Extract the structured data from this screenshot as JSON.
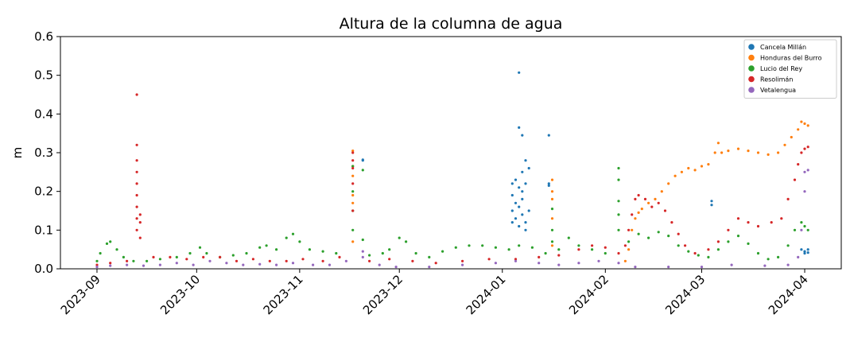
{
  "chart_data": {
    "type": "scatter",
    "title": "Altura de la columna de agua",
    "xlabel": "",
    "ylabel": "m",
    "x_axis_type": "date",
    "xlim": [
      "2023-08-21",
      "2024-04-12"
    ],
    "ylim": [
      0,
      0.6
    ],
    "x_ticks": [
      "2023-09",
      "2023-10",
      "2023-11",
      "2023-12",
      "2024-01",
      "2024-02",
      "2024-03",
      "2024-04"
    ],
    "y_ticks": [
      0.0,
      0.1,
      0.2,
      0.3,
      0.4,
      0.5,
      0.6
    ],
    "y_tick_labels": [
      "0.0",
      "0.1",
      "0.2",
      "0.3",
      "0.4",
      "0.5",
      "0.6"
    ],
    "grid": false,
    "legend_position": "top-right",
    "series": [
      {
        "name": "Cancela Millán",
        "color": "#1f77b4",
        "marker_size": "small",
        "points": [
          [
            "2023-11-20",
            0.28
          ],
          [
            "2023-11-20",
            0.282
          ],
          [
            "2024-01-04",
            0.22
          ],
          [
            "2024-01-04",
            0.19
          ],
          [
            "2024-01-04",
            0.15
          ],
          [
            "2024-01-04",
            0.12
          ],
          [
            "2024-01-05",
            0.23
          ],
          [
            "2024-01-05",
            0.17
          ],
          [
            "2024-01-05",
            0.13
          ],
          [
            "2024-01-06",
            0.507
          ],
          [
            "2024-01-06",
            0.365
          ],
          [
            "2024-01-06",
            0.21
          ],
          [
            "2024-01-06",
            0.16
          ],
          [
            "2024-01-06",
            0.11
          ],
          [
            "2024-01-07",
            0.345
          ],
          [
            "2024-01-07",
            0.25
          ],
          [
            "2024-01-07",
            0.2
          ],
          [
            "2024-01-07",
            0.18
          ],
          [
            "2024-01-07",
            0.14
          ],
          [
            "2024-01-08",
            0.28
          ],
          [
            "2024-01-08",
            0.22
          ],
          [
            "2024-01-08",
            0.12
          ],
          [
            "2024-01-08",
            0.1
          ],
          [
            "2024-01-09",
            0.26
          ],
          [
            "2024-01-09",
            0.15
          ],
          [
            "2024-01-15",
            0.345
          ],
          [
            "2024-01-15",
            0.22
          ],
          [
            "2024-01-15",
            0.215
          ],
          [
            "2024-03-04",
            0.175
          ],
          [
            "2024-03-04",
            0.165
          ],
          [
            "2024-03-31",
            0.05
          ],
          [
            "2024-04-01",
            0.045
          ],
          [
            "2024-04-01",
            0.04
          ],
          [
            "2024-04-02",
            0.05
          ],
          [
            "2024-04-02",
            0.042
          ]
        ]
      },
      {
        "name": "Honduras del Burro",
        "color": "#ff7f0e",
        "marker_size": "small",
        "points": [
          [
            "2023-11-17",
            0.305
          ],
          [
            "2023-11-17",
            0.265
          ],
          [
            "2023-11-17",
            0.24
          ],
          [
            "2023-11-17",
            0.19
          ],
          [
            "2023-11-17",
            0.17
          ],
          [
            "2023-11-17",
            0.07
          ],
          [
            "2024-01-16",
            0.23
          ],
          [
            "2024-01-16",
            0.2
          ],
          [
            "2024-01-16",
            0.18
          ],
          [
            "2024-01-16",
            0.13
          ],
          [
            "2024-01-16",
            0.06
          ],
          [
            "2024-02-07",
            0.02
          ],
          [
            "2024-02-08",
            0.05
          ],
          [
            "2024-02-09",
            0.1
          ],
          [
            "2024-02-10",
            0.13
          ],
          [
            "2024-02-11",
            0.145
          ],
          [
            "2024-02-12",
            0.155
          ],
          [
            "2024-02-14",
            0.17
          ],
          [
            "2024-02-16",
            0.18
          ],
          [
            "2024-02-18",
            0.2
          ],
          [
            "2024-02-20",
            0.22
          ],
          [
            "2024-02-22",
            0.24
          ],
          [
            "2024-02-24",
            0.25
          ],
          [
            "2024-02-26",
            0.26
          ],
          [
            "2024-02-28",
            0.255
          ],
          [
            "2024-03-01",
            0.265
          ],
          [
            "2024-03-03",
            0.27
          ],
          [
            "2024-03-05",
            0.3
          ],
          [
            "2024-03-06",
            0.325
          ],
          [
            "2024-03-07",
            0.3
          ],
          [
            "2024-03-09",
            0.305
          ],
          [
            "2024-03-12",
            0.31
          ],
          [
            "2024-03-15",
            0.305
          ],
          [
            "2024-03-18",
            0.3
          ],
          [
            "2024-03-21",
            0.295
          ],
          [
            "2024-03-24",
            0.3
          ],
          [
            "2024-03-26",
            0.32
          ],
          [
            "2024-03-28",
            0.34
          ],
          [
            "2024-03-30",
            0.36
          ],
          [
            "2024-03-31",
            0.38
          ],
          [
            "2024-04-01",
            0.375
          ],
          [
            "2024-04-02",
            0.37
          ]
        ]
      },
      {
        "name": "Lucio del Rey",
        "color": "#2ca02c",
        "marker_size": "small",
        "points": [
          [
            "2023-09-01",
            0.02
          ],
          [
            "2023-09-02",
            0.04
          ],
          [
            "2023-09-04",
            0.065
          ],
          [
            "2023-09-05",
            0.07
          ],
          [
            "2023-09-07",
            0.05
          ],
          [
            "2023-09-09",
            0.03
          ],
          [
            "2023-09-12",
            0.02
          ],
          [
            "2023-09-16",
            0.02
          ],
          [
            "2023-09-20",
            0.025
          ],
          [
            "2023-09-25",
            0.03
          ],
          [
            "2023-09-29",
            0.04
          ],
          [
            "2023-10-02",
            0.055
          ],
          [
            "2023-10-04",
            0.04
          ],
          [
            "2023-10-08",
            0.03
          ],
          [
            "2023-10-12",
            0.035
          ],
          [
            "2023-10-16",
            0.04
          ],
          [
            "2023-10-20",
            0.055
          ],
          [
            "2023-10-22",
            0.06
          ],
          [
            "2023-10-25",
            0.05
          ],
          [
            "2023-10-28",
            0.08
          ],
          [
            "2023-10-30",
            0.09
          ],
          [
            "2023-11-01",
            0.07
          ],
          [
            "2023-11-04",
            0.05
          ],
          [
            "2023-11-08",
            0.045
          ],
          [
            "2023-11-12",
            0.04
          ],
          [
            "2023-11-17",
            0.265
          ],
          [
            "2023-11-17",
            0.2
          ],
          [
            "2023-11-17",
            0.15
          ],
          [
            "2023-11-17",
            0.1
          ],
          [
            "2023-11-20",
            0.255
          ],
          [
            "2023-11-20",
            0.075
          ],
          [
            "2023-11-22",
            0.035
          ],
          [
            "2023-11-26",
            0.04
          ],
          [
            "2023-11-28",
            0.05
          ],
          [
            "2023-12-01",
            0.08
          ],
          [
            "2023-12-03",
            0.07
          ],
          [
            "2023-12-06",
            0.04
          ],
          [
            "2023-12-10",
            0.03
          ],
          [
            "2023-12-14",
            0.045
          ],
          [
            "2023-12-18",
            0.055
          ],
          [
            "2023-12-22",
            0.06
          ],
          [
            "2023-12-26",
            0.06
          ],
          [
            "2023-12-30",
            0.055
          ],
          [
            "2024-01-03",
            0.05
          ],
          [
            "2024-01-06",
            0.06
          ],
          [
            "2024-01-10",
            0.055
          ],
          [
            "2024-01-14",
            0.04
          ],
          [
            "2024-01-16",
            0.155
          ],
          [
            "2024-01-16",
            0.1
          ],
          [
            "2024-01-16",
            0.07
          ],
          [
            "2024-01-18",
            0.05
          ],
          [
            "2024-01-21",
            0.08
          ],
          [
            "2024-01-24",
            0.06
          ],
          [
            "2024-01-28",
            0.05
          ],
          [
            "2024-02-01",
            0.04
          ],
          [
            "2024-02-05",
            0.26
          ],
          [
            "2024-02-05",
            0.23
          ],
          [
            "2024-02-05",
            0.175
          ],
          [
            "2024-02-05",
            0.14
          ],
          [
            "2024-02-05",
            0.1
          ],
          [
            "2024-02-08",
            0.07
          ],
          [
            "2024-02-11",
            0.09
          ],
          [
            "2024-02-14",
            0.08
          ],
          [
            "2024-02-17",
            0.095
          ],
          [
            "2024-02-20",
            0.085
          ],
          [
            "2024-02-23",
            0.06
          ],
          [
            "2024-02-26",
            0.045
          ],
          [
            "2024-02-29",
            0.035
          ],
          [
            "2024-03-03",
            0.03
          ],
          [
            "2024-03-06",
            0.05
          ],
          [
            "2024-03-09",
            0.07
          ],
          [
            "2024-03-12",
            0.085
          ],
          [
            "2024-03-15",
            0.065
          ],
          [
            "2024-03-18",
            0.04
          ],
          [
            "2024-03-21",
            0.025
          ],
          [
            "2024-03-24",
            0.03
          ],
          [
            "2024-03-27",
            0.06
          ],
          [
            "2024-03-29",
            0.1
          ],
          [
            "2024-03-31",
            0.12
          ],
          [
            "2024-04-01",
            0.11
          ],
          [
            "2024-04-02",
            0.1
          ]
        ]
      },
      {
        "name": "Resolimán",
        "color": "#d62728",
        "marker_size": "small",
        "points": [
          [
            "2023-09-01",
            0.01
          ],
          [
            "2023-09-05",
            0.015
          ],
          [
            "2023-09-10",
            0.02
          ],
          [
            "2023-09-13",
            0.45
          ],
          [
            "2023-09-13",
            0.32
          ],
          [
            "2023-09-13",
            0.28
          ],
          [
            "2023-09-13",
            0.25
          ],
          [
            "2023-09-13",
            0.22
          ],
          [
            "2023-09-13",
            0.19
          ],
          [
            "2023-09-13",
            0.16
          ],
          [
            "2023-09-13",
            0.13
          ],
          [
            "2023-09-13",
            0.1
          ],
          [
            "2023-09-14",
            0.14
          ],
          [
            "2023-09-14",
            0.12
          ],
          [
            "2023-09-14",
            0.08
          ],
          [
            "2023-09-18",
            0.03
          ],
          [
            "2023-09-23",
            0.03
          ],
          [
            "2023-09-28",
            0.025
          ],
          [
            "2023-10-03",
            0.03
          ],
          [
            "2023-10-08",
            0.03
          ],
          [
            "2023-10-13",
            0.02
          ],
          [
            "2023-10-18",
            0.025
          ],
          [
            "2023-10-23",
            0.02
          ],
          [
            "2023-10-28",
            0.02
          ],
          [
            "2023-11-02",
            0.025
          ],
          [
            "2023-11-08",
            0.02
          ],
          [
            "2023-11-13",
            0.03
          ],
          [
            "2023-11-17",
            0.3
          ],
          [
            "2023-11-17",
            0.28
          ],
          [
            "2023-11-17",
            0.26
          ],
          [
            "2023-11-17",
            0.22
          ],
          [
            "2023-11-17",
            0.15
          ],
          [
            "2023-11-22",
            0.02
          ],
          [
            "2023-11-28",
            0.025
          ],
          [
            "2023-12-05",
            0.02
          ],
          [
            "2023-12-12",
            0.015
          ],
          [
            "2023-12-20",
            0.02
          ],
          [
            "2023-12-28",
            0.025
          ],
          [
            "2024-01-05",
            0.025
          ],
          [
            "2024-01-12",
            0.03
          ],
          [
            "2024-01-18",
            0.035
          ],
          [
            "2024-01-24",
            0.05
          ],
          [
            "2024-01-28",
            0.06
          ],
          [
            "2024-02-01",
            0.055
          ],
          [
            "2024-02-05",
            0.04
          ],
          [
            "2024-02-07",
            0.06
          ],
          [
            "2024-02-08",
            0.1
          ],
          [
            "2024-02-09",
            0.14
          ],
          [
            "2024-02-10",
            0.18
          ],
          [
            "2024-02-11",
            0.19
          ],
          [
            "2024-02-13",
            0.18
          ],
          [
            "2024-02-15",
            0.16
          ],
          [
            "2024-02-17",
            0.17
          ],
          [
            "2024-02-19",
            0.15
          ],
          [
            "2024-02-21",
            0.12
          ],
          [
            "2024-02-23",
            0.09
          ],
          [
            "2024-02-25",
            0.06
          ],
          [
            "2024-02-28",
            0.04
          ],
          [
            "2024-03-03",
            0.05
          ],
          [
            "2024-03-06",
            0.07
          ],
          [
            "2024-03-09",
            0.1
          ],
          [
            "2024-03-12",
            0.13
          ],
          [
            "2024-03-15",
            0.12
          ],
          [
            "2024-03-18",
            0.11
          ],
          [
            "2024-03-22",
            0.12
          ],
          [
            "2024-03-25",
            0.13
          ],
          [
            "2024-03-27",
            0.18
          ],
          [
            "2024-03-29",
            0.23
          ],
          [
            "2024-03-30",
            0.27
          ],
          [
            "2024-03-31",
            0.3
          ],
          [
            "2024-04-01",
            0.31
          ],
          [
            "2024-04-02",
            0.315
          ]
        ]
      },
      {
        "name": "Vetalengua",
        "color": "#9467bd",
        "marker_size": "small",
        "points": [
          [
            "2023-09-01",
            0.005
          ],
          [
            "2023-09-05",
            0.008
          ],
          [
            "2023-09-10",
            0.01
          ],
          [
            "2023-09-15",
            0.008
          ],
          [
            "2023-09-20",
            0.01
          ],
          [
            "2023-09-25",
            0.015
          ],
          [
            "2023-09-30",
            0.01
          ],
          [
            "2023-10-05",
            0.02
          ],
          [
            "2023-10-10",
            0.015
          ],
          [
            "2023-10-15",
            0.01
          ],
          [
            "2023-10-20",
            0.012
          ],
          [
            "2023-10-25",
            0.01
          ],
          [
            "2023-10-30",
            0.015
          ],
          [
            "2023-11-05",
            0.01
          ],
          [
            "2023-11-10",
            0.01
          ],
          [
            "2023-11-15",
            0.02
          ],
          [
            "2023-11-20",
            0.045
          ],
          [
            "2023-11-20",
            0.03
          ],
          [
            "2023-11-25",
            0.01
          ],
          [
            "2023-11-30",
            0.005
          ],
          [
            "2023-12-10",
            0.005
          ],
          [
            "2023-12-20",
            0.01
          ],
          [
            "2023-12-30",
            0.015
          ],
          [
            "2024-01-05",
            0.02
          ],
          [
            "2024-01-12",
            0.015
          ],
          [
            "2024-01-18",
            0.01
          ],
          [
            "2024-01-24",
            0.015
          ],
          [
            "2024-01-30",
            0.02
          ],
          [
            "2024-02-05",
            0.015
          ],
          [
            "2024-02-10",
            0.005
          ],
          [
            "2024-02-20",
            0.005
          ],
          [
            "2024-03-01",
            0.005
          ],
          [
            "2024-03-10",
            0.01
          ],
          [
            "2024-03-20",
            0.008
          ],
          [
            "2024-03-27",
            0.01
          ],
          [
            "2024-03-30",
            0.03
          ],
          [
            "2024-03-31",
            0.1
          ],
          [
            "2024-04-01",
            0.2
          ],
          [
            "2024-04-01",
            0.25
          ],
          [
            "2024-04-02",
            0.255
          ]
        ]
      }
    ]
  }
}
